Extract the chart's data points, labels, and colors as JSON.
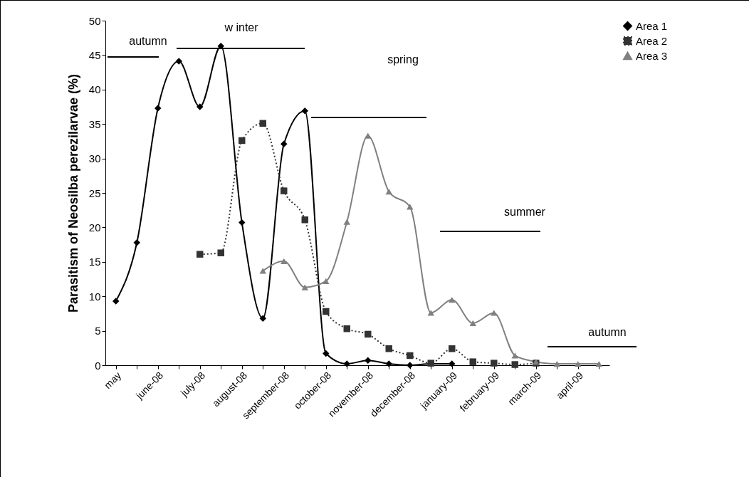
{
  "chart_data": {
    "type": "line",
    "ylabel": "Parasitism of Neosilba perezilarvae (%)",
    "categories": [
      "may",
      null,
      "june-08",
      null,
      "july-08",
      null,
      "august-08",
      null,
      "september-08",
      null,
      "october-08",
      null,
      "november-08",
      null,
      "december-08",
      null,
      "january-09",
      null,
      "february-09",
      null,
      "march-09",
      null,
      "april-09",
      null
    ],
    "series": [
      {
        "name": "Area 1",
        "color": "#000000",
        "marker": "diamond",
        "line_style": "solid",
        "values": [
          9.3,
          17.8,
          37.3,
          44.1,
          37.5,
          46.3,
          20.7,
          6.8,
          32.1,
          36.9,
          1.7,
          0.2,
          0.7,
          0.2,
          0,
          0.2,
          0.2,
          null,
          null,
          null,
          null,
          null,
          null,
          null
        ]
      },
      {
        "name": "Area 2",
        "color": "#333333",
        "marker": "square",
        "line_style": "dotted",
        "values": [
          null,
          null,
          null,
          null,
          16.1,
          16.3,
          32.6,
          35.1,
          25.3,
          21.1,
          7.8,
          5.3,
          4.5,
          2.4,
          1.4,
          0.3,
          2.4,
          0.5,
          0.3,
          0.1,
          0.3,
          null,
          null,
          null
        ]
      },
      {
        "name": "Area 3",
        "color": "#808080",
        "marker": "triangle",
        "line_style": "solid",
        "values": [
          null,
          null,
          null,
          null,
          null,
          null,
          null,
          13.7,
          15.1,
          11.3,
          12.2,
          20.8,
          33.3,
          25.2,
          23.0,
          7.6,
          9.5,
          6.1,
          7.6,
          1.4,
          0.5,
          0.2,
          0.2,
          0.2
        ]
      }
    ],
    "annotations": [
      "autumn",
      "w inter",
      "spring",
      "summer",
      "autumn"
    ],
    "ylim": [
      0,
      50
    ],
    "yticks": [
      0,
      5,
      10,
      15,
      20,
      25,
      30,
      35,
      40,
      45,
      50
    ],
    "grid": false,
    "legend": "top right"
  }
}
